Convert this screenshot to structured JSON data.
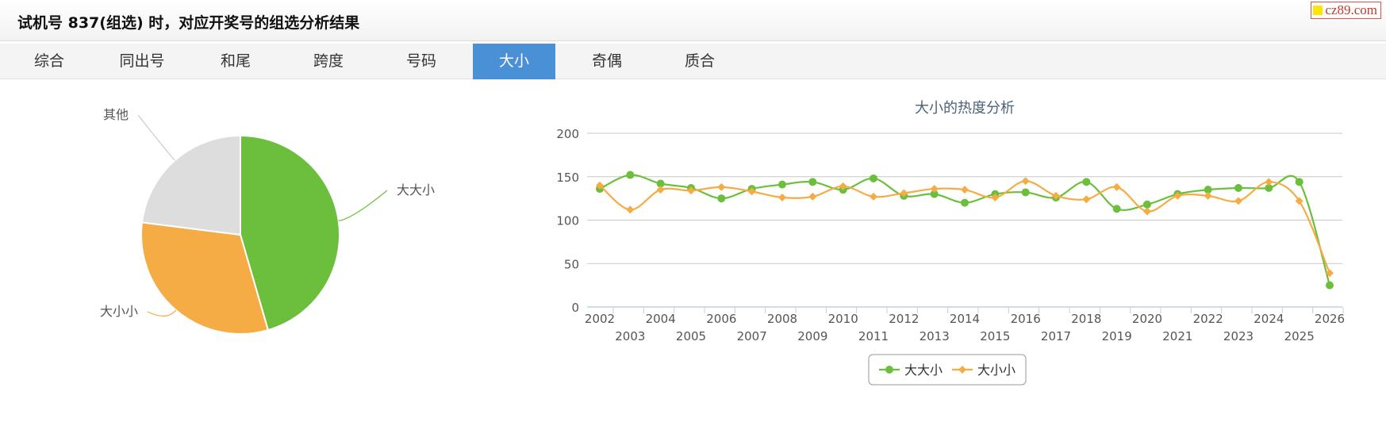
{
  "header": {
    "title": "试机号 837(组选) 时，对应开奖号的组选分析结果"
  },
  "brand": {
    "text": "cz89.com"
  },
  "tabs": [
    {
      "label": "综合",
      "active": false
    },
    {
      "label": "同出号",
      "active": false
    },
    {
      "label": "和尾",
      "active": false
    },
    {
      "label": "跨度",
      "active": false
    },
    {
      "label": "号码",
      "active": false
    },
    {
      "label": "大小",
      "active": true
    },
    {
      "label": "奇偶",
      "active": false
    },
    {
      "label": "质合",
      "active": false
    }
  ],
  "colors": {
    "accent": "#4a90d6",
    "green": "#6cbf3c",
    "orange": "#f5ac45",
    "gray": "#dddddd"
  },
  "chart_data": [
    {
      "type": "pie",
      "title": "",
      "slices": [
        {
          "label": "大大小",
          "value": 45.5,
          "color": "#6cbf3c"
        },
        {
          "label": "大小小",
          "value": 31.5,
          "color": "#f5ac45"
        },
        {
          "label": "其他",
          "value": 23.0,
          "color": "#dddddd"
        }
      ]
    },
    {
      "type": "line",
      "title": "大小的热度分析",
      "xlabel": "",
      "ylabel": "",
      "x": [
        "2002",
        "2003",
        "2004",
        "2005",
        "2006",
        "2007",
        "2008",
        "2009",
        "2010",
        "2011",
        "2012",
        "2013",
        "2014",
        "2015",
        "2016",
        "2017",
        "2018",
        "2019",
        "2020",
        "2021",
        "2022",
        "2023",
        "2024",
        "2025",
        "2026"
      ],
      "ylim": [
        0,
        200
      ],
      "yticks": [
        0,
        50,
        100,
        150,
        200
      ],
      "grid": true,
      "legend": "bottom-center",
      "series": [
        {
          "name": "大大小",
          "color": "#6cbf3c",
          "marker": "circle",
          "values": [
            136,
            152,
            142,
            137,
            125,
            136,
            141,
            144,
            135,
            148,
            128,
            130,
            120,
            130,
            132,
            126,
            144,
            113,
            118,
            130,
            135,
            137,
            137,
            144,
            25
          ]
        },
        {
          "name": "大小小",
          "color": "#f5ac45",
          "marker": "diamond",
          "values": [
            140,
            112,
            135,
            134,
            138,
            133,
            126,
            127,
            139,
            127,
            131,
            136,
            135,
            126,
            145,
            128,
            124,
            138,
            110,
            128,
            128,
            122,
            144,
            122,
            39
          ]
        }
      ]
    }
  ]
}
